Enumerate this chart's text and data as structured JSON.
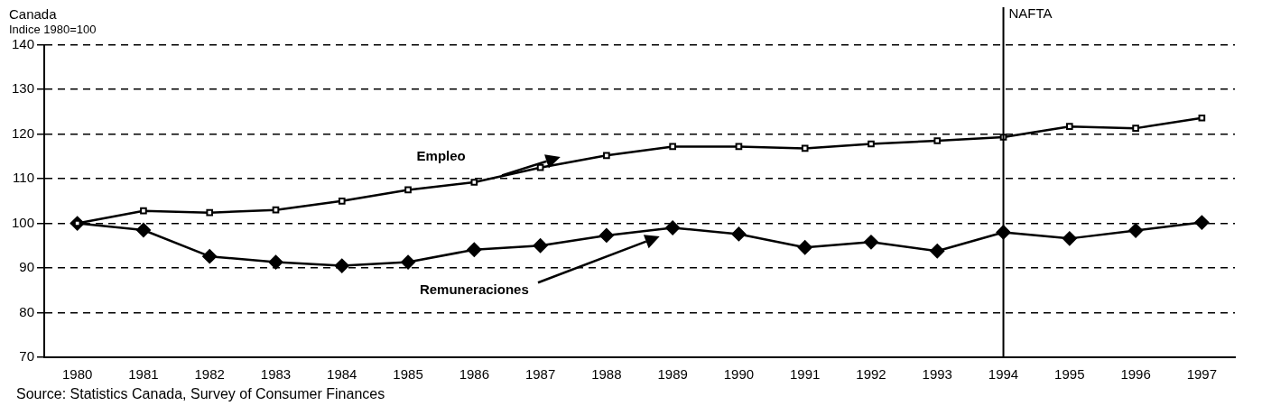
{
  "chart_data": {
    "type": "line",
    "title": "Canada",
    "subtitle": "Indice 1980=100",
    "categories": [
      "1980",
      "1981",
      "1982",
      "1983",
      "1984",
      "1985",
      "1986",
      "1987",
      "1988",
      "1989",
      "1990",
      "1991",
      "1992",
      "1993",
      "1994",
      "1995",
      "1996",
      "1997"
    ],
    "series": [
      {
        "name": "Empleo",
        "color": "#000000",
        "marker": "square",
        "values": [
          100,
          102.8,
          102.4,
          103,
          105,
          107.5,
          109.2,
          112.5,
          115.2,
          117.2,
          117.2,
          116.8,
          117.8,
          118.5,
          119.3,
          121.7,
          121.3,
          123.6
        ]
      },
      {
        "name": "Remuneraciones",
        "color": "#000000",
        "marker": "diamond",
        "values": [
          100,
          98.5,
          92.6,
          91.3,
          90.5,
          91.3,
          94.1,
          95,
          97.3,
          99,
          97.6,
          94.6,
          95.8,
          93.8,
          98,
          96.6,
          98.4,
          100.2
        ]
      }
    ],
    "ylim": [
      70,
      140
    ],
    "yticks": [
      70,
      80,
      90,
      100,
      110,
      120,
      130,
      140
    ],
    "grid": "y",
    "legend": false,
    "line_style": "solid",
    "ref_lines": [
      {
        "axis": "x",
        "value": "1994",
        "label": "NAFTA",
        "color": "#000000"
      }
    ],
    "annotations": [
      "Source: Statistics Canada, Survey of Consumer Finances"
    ]
  }
}
